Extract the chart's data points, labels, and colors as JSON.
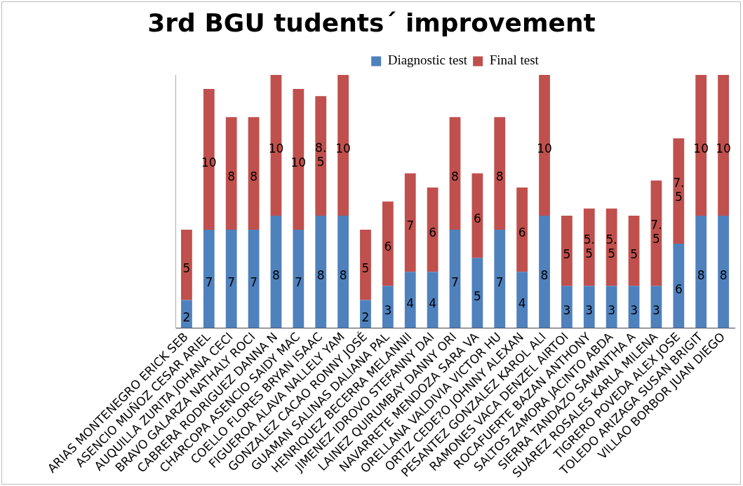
{
  "chart_data": {
    "type": "bar",
    "title": "3rd BGU tudents´ improvement",
    "stacked": true,
    "legend": "top",
    "data_labels": true,
    "tick_labels": "x",
    "grid": false,
    "categories": [
      "ARIAS MONTENEGRO ERICK SEB",
      "ASENCIO MUÑOZ CESAR ARIEL",
      "AUQUILLA ZURITA JOHANA CECI",
      "BRAVO GALARZA NATHALY ROCI",
      "CABRERA RODRIGUEZ DANNA N",
      "CHARCOPA ASENCIO SAIDY MAC",
      "COELLO FLORES BRYAN ISAAC",
      "FIGUEROA ALAVA NALLELY YAM",
      "GONZALEZ CACAO RONNY JOSÉ",
      "GUAMAN SALINAS DALIANA PAL",
      "HENRIQUEZ BECERRA MELANNII",
      "JIMENEZ IDROVO STEFANNY DAI",
      "LAINEZ QUIRUMBAY DANNY ORI",
      "NAVARRETE MENDOZA SARA VA",
      "ORELLANA VALDIVIA VICTOR HU",
      "ORTIZ CEDE?O JOHNNY ALEXAN",
      "PESANTEZ GONZALEZ KAROL ALI",
      "RAMONES VACA DENZEL AIRTOI",
      "ROCAFUERTE BAZAN ANTHONY",
      "SALTOS ZAMORA JACINTO ABDA",
      "SIERRA TANDAZO SAMANTHA A",
      "SUAREZ ROSALES KARLA MILENA",
      "TIGRERO POVEDA ALEX JOSE",
      "TOLEDO ARIZAGA SUSAN BRIGIT",
      "VILLAO BORBOR JUAN DIEGO"
    ],
    "series": [
      {
        "name": "Diagnostic test",
        "color": "#4f81bd",
        "values": [
          2,
          7,
          7,
          7,
          8,
          7,
          8,
          8,
          2,
          3,
          4,
          4,
          7,
          5,
          7,
          4,
          8,
          3,
          3,
          3,
          3,
          3,
          6,
          8,
          8
        ]
      },
      {
        "name": "Final test",
        "color": "#c0504d",
        "values": [
          5,
          10,
          8,
          8,
          10,
          10,
          8.5,
          10,
          5,
          6,
          7,
          6,
          8,
          6,
          8,
          6,
          10,
          5,
          5.5,
          5.5,
          5,
          7.5,
          7.5,
          10,
          10
        ]
      }
    ]
  }
}
